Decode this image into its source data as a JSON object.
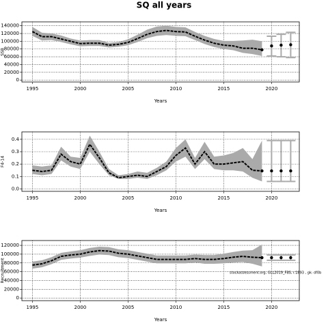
{
  "title": "SQ all years",
  "annotation": "stockassessment.org, GLL2019_FBS, r.1893 , gk: df0b",
  "chart_data": [
    {
      "type": "line",
      "ylabel": "SSB",
      "xlabel": "Years",
      "xlim": [
        1993.9,
        2022.9
      ],
      "xticks": [
        1995,
        2000,
        2005,
        2010,
        2015,
        2020
      ],
      "ylim": [
        -5000,
        150000
      ],
      "yticks": [
        0,
        20000,
        40000,
        60000,
        80000,
        100000,
        120000,
        140000
      ],
      "grid": true,
      "color": "#000000",
      "band_color": "#aaaaaa",
      "x": [
        1995,
        1996,
        1997,
        1998,
        1999,
        2000,
        2001,
        2002,
        2003,
        2004,
        2005,
        2006,
        2007,
        2008,
        2009,
        2010,
        2011,
        2012,
        2013,
        2014,
        2015,
        2016,
        2017,
        2018,
        2019
      ],
      "values": [
        125000,
        112000,
        112000,
        106000,
        100000,
        94000,
        95000,
        95000,
        90000,
        92000,
        97000,
        107000,
        118000,
        125000,
        128000,
        125000,
        124000,
        113000,
        103000,
        95000,
        90000,
        88000,
        82000,
        82000,
        78000
      ],
      "upper": [
        137000,
        122000,
        120000,
        115000,
        107000,
        102000,
        103000,
        103000,
        96000,
        98000,
        105000,
        117000,
        130000,
        138000,
        140000,
        137000,
        136000,
        124000,
        114000,
        106000,
        101000,
        101000,
        102000,
        104000,
        100000
      ],
      "lower": [
        114000,
        102000,
        103000,
        98000,
        92000,
        87000,
        88000,
        88000,
        84000,
        86000,
        90000,
        98000,
        108000,
        114000,
        116000,
        114000,
        113000,
        103000,
        93000,
        85000,
        80000,
        77000,
        70000,
        67000,
        62000
      ],
      "forecast": {
        "x": [
          2020,
          2021,
          2022
        ],
        "values": [
          88000,
          90000,
          91000
        ],
        "lower": [
          62000,
          60000,
          58000
        ],
        "upper": [
          113000,
          118000,
          123000
        ]
      }
    },
    {
      "type": "line",
      "ylabel": "F4-14",
      "xlabel": "Years",
      "xlim": [
        1993.9,
        2022.9
      ],
      "xticks": [
        1995,
        2000,
        2005,
        2010,
        2015,
        2020
      ],
      "ylim": [
        -0.02,
        0.46
      ],
      "yticks": [
        {
          "value": 0,
          "label": "0.0"
        },
        0.1,
        0.2,
        0.3,
        0.4
      ],
      "grid": true,
      "color": "#000000",
      "band_color": "#aaaaaa",
      "x": [
        1995,
        1996,
        1997,
        1998,
        1999,
        2000,
        2001,
        2002,
        2003,
        2004,
        2005,
        2006,
        2007,
        2008,
        2009,
        2010,
        2011,
        2012,
        2013,
        2014,
        2015,
        2016,
        2017,
        2018,
        2019
      ],
      "values": [
        0.15,
        0.14,
        0.15,
        0.28,
        0.22,
        0.2,
        0.36,
        0.25,
        0.13,
        0.09,
        0.1,
        0.11,
        0.1,
        0.14,
        0.18,
        0.27,
        0.33,
        0.2,
        0.3,
        0.2,
        0.2,
        0.21,
        0.22,
        0.15,
        0.145
      ],
      "upper": [
        0.19,
        0.18,
        0.19,
        0.34,
        0.26,
        0.25,
        0.43,
        0.3,
        0.16,
        0.11,
        0.12,
        0.14,
        0.13,
        0.17,
        0.22,
        0.33,
        0.4,
        0.25,
        0.38,
        0.26,
        0.27,
        0.29,
        0.33,
        0.24,
        0.39
      ],
      "lower": [
        0.12,
        0.11,
        0.12,
        0.23,
        0.18,
        0.16,
        0.3,
        0.2,
        0.11,
        0.08,
        0.08,
        0.09,
        0.08,
        0.11,
        0.15,
        0.22,
        0.26,
        0.16,
        0.24,
        0.16,
        0.15,
        0.15,
        0.14,
        0.09,
        0.06
      ],
      "forecast": {
        "x": [
          2020,
          2021,
          2022
        ],
        "values": [
          0.145,
          0.145,
          0.145
        ],
        "lower": [
          0.06,
          0.06,
          0.06
        ],
        "upper": [
          0.39,
          0.39,
          0.39
        ]
      }
    },
    {
      "type": "line",
      "ylabel": "Recruitment",
      "xlabel": "Years",
      "xlim": [
        1993.9,
        2022.9
      ],
      "xticks": [
        1995,
        2000,
        2005,
        2010,
        2015,
        2020
      ],
      "ylim": [
        -6000,
        131000
      ],
      "yticks": [
        0,
        20000,
        40000,
        60000,
        80000,
        100000,
        120000
      ],
      "grid": true,
      "color": "#000000",
      "band_color": "#aaaaaa",
      "x": [
        1995,
        1996,
        1997,
        1998,
        1999,
        2000,
        2001,
        2002,
        2003,
        2004,
        2005,
        2006,
        2007,
        2008,
        2009,
        2010,
        2011,
        2012,
        2013,
        2014,
        2015,
        2016,
        2017,
        2018,
        2019
      ],
      "values": [
        75000,
        78000,
        85000,
        95000,
        98000,
        100000,
        105000,
        108000,
        107000,
        102000,
        100000,
        96000,
        92000,
        88000,
        88000,
        88000,
        88000,
        90000,
        88000,
        88000,
        90000,
        93000,
        95000,
        93000,
        92000
      ],
      "upper": [
        83000,
        86000,
        93000,
        103000,
        106000,
        109000,
        114000,
        117000,
        116000,
        111000,
        109000,
        105000,
        101000,
        97000,
        97000,
        97000,
        97000,
        99000,
        98000,
        98000,
        101000,
        105000,
        108000,
        109000,
        122000
      ],
      "lower": [
        67000,
        70000,
        77000,
        87000,
        90000,
        92000,
        96000,
        99000,
        98000,
        93000,
        91000,
        87000,
        83000,
        79000,
        79000,
        79000,
        79000,
        81000,
        78000,
        78000,
        79000,
        81000,
        82000,
        78000,
        72000
      ],
      "forecast": {
        "x": [
          2020,
          2021,
          2022
        ],
        "values": [
          92000,
          92000,
          92000
        ],
        "lower": [
          86000,
          86000,
          86000
        ],
        "upper": [
          98000,
          98000,
          98000
        ]
      }
    }
  ]
}
